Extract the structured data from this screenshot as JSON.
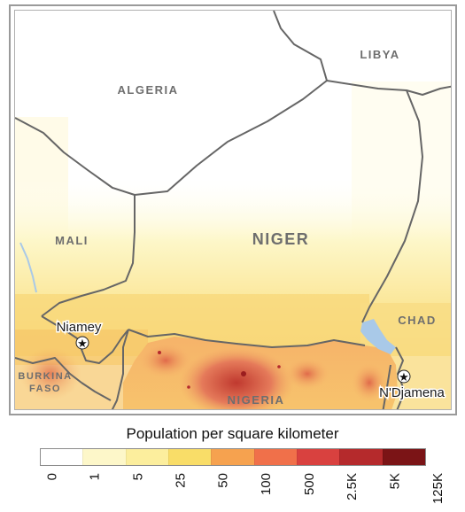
{
  "map": {
    "countries": [
      {
        "key": "algeria",
        "label": "ALGERIA"
      },
      {
        "key": "libya",
        "label": "LIBYA"
      },
      {
        "key": "niger",
        "label": "NIGER"
      },
      {
        "key": "mali",
        "label": "MALI"
      },
      {
        "key": "chad",
        "label": "CHAD"
      },
      {
        "key": "burkina_line1",
        "label": "BURKINA"
      },
      {
        "key": "burkina_line2",
        "label": "FASO"
      },
      {
        "key": "nigeria",
        "label": "NIGERIA"
      }
    ],
    "capitals": [
      {
        "key": "niamey",
        "label": "Niamey"
      },
      {
        "key": "ndjamena",
        "label": "N'Djamena"
      }
    ],
    "capital_symbol": "star-icon"
  },
  "legend": {
    "title": "Population per square kilometer",
    "ticks": [
      "0",
      "1",
      "5",
      "25",
      "50",
      "100",
      "500",
      "2.5K",
      "5K",
      "125K"
    ],
    "colors": [
      "#ffffff",
      "#fdf7c9",
      "#fcee9d",
      "#f9dd68",
      "#f6a24f",
      "#f0704a",
      "#d9413f",
      "#b52a2c",
      "#7b1416"
    ]
  },
  "colors": {
    "border": "#666666",
    "water": "#a9c9e8",
    "label": "#6e6e6e"
  }
}
